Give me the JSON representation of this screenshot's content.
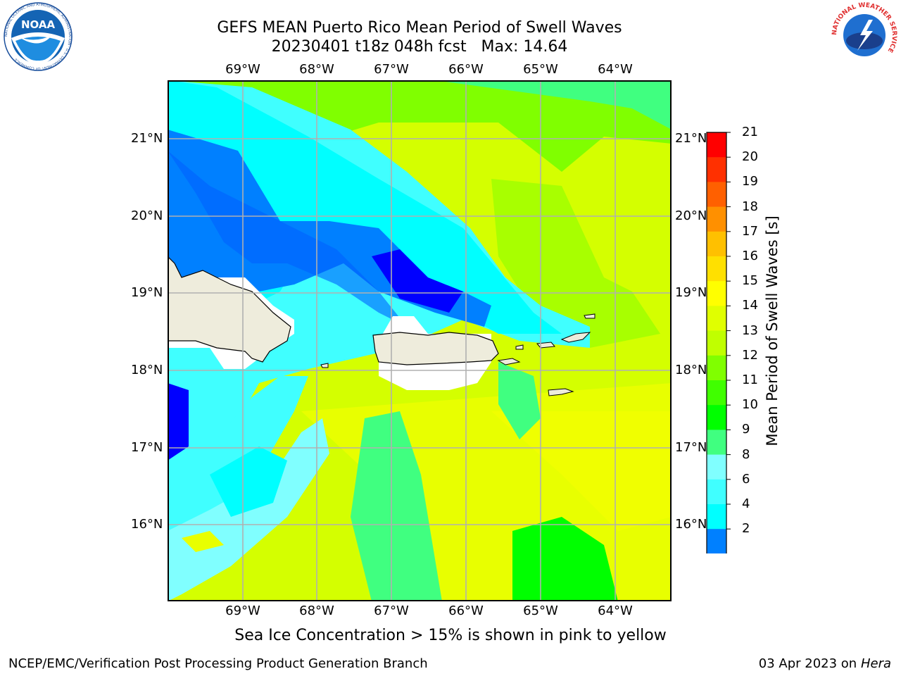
{
  "title": {
    "line1": "GEFS MEAN Puerto Rico Mean Period of Swell Waves",
    "line2": "20230401 t18z 048h fcst   Max: 14.64"
  },
  "map": {
    "lon_labels": [
      "69°W",
      "68°W",
      "67°W",
      "66°W",
      "65°W",
      "64°W"
    ],
    "lat_labels": [
      "21°N",
      "20°N",
      "19°N",
      "18°N",
      "17°N",
      "16°N"
    ],
    "land_color": "#eeecdc",
    "grid_color": "#b0b0b0"
  },
  "colorbar": {
    "label": "Mean Period of Swell Waves [s]",
    "ticks": [
      "21",
      "20",
      "19",
      "18",
      "17",
      "16",
      "15",
      "14",
      "13",
      "12",
      "11",
      "10",
      "9",
      "8",
      "6",
      "4",
      "2"
    ],
    "colors": [
      "#0000ff",
      "#0080ff",
      "#00ffff",
      "#40ffff",
      "#80ffff",
      "#40ff80",
      "#00ff00",
      "#40ff00",
      "#80ff00",
      "#c0ff00",
      "#e0ff00",
      "#ffff00",
      "#ffe000",
      "#ffc000",
      "#ff9000",
      "#ff6000",
      "#ff3000",
      "#ff0000"
    ]
  },
  "note": "Sea Ice Concentration > 15% is shown in pink to yellow",
  "footer": {
    "left": "NCEP/EMC/Verification Post Processing Product Generation Branch",
    "date": "03 Apr 2023 on ",
    "host": "Hera"
  },
  "logos": {
    "noaa_text": "NOAA",
    "noaa_ring": "NATIONAL OCEANIC AND ATMOSPHERIC ADMINISTRATION · U.S. DEPARTMENT OF COMMERCE",
    "nws_ring": "NATIONAL WEATHER SERVICE"
  }
}
